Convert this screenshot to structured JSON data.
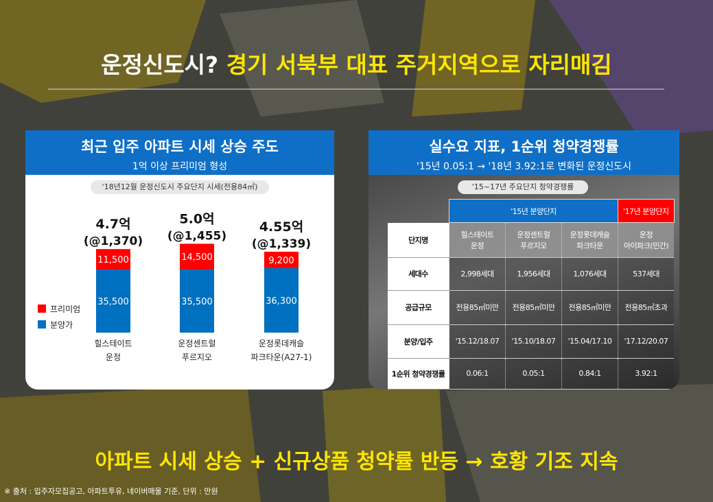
{
  "title": {
    "lead": "운정신도시?",
    "rest": "경기 서북부 대표 주거지역으로 자리매김"
  },
  "left_panel": {
    "title": "최근 입주 아파트 시세 상승 주도",
    "subtitle": "1억 이상 프리미엄 형성",
    "caption": "'18년12월 운정신도시 주요단지 시세(전용84㎡)"
  },
  "chart_data": {
    "type": "stacked_bar",
    "categories": [
      "힐스테이트\n운정",
      "운정센트럴\n푸르지오",
      "운정롯데캐슬\n파크타운(A27-1)"
    ],
    "series": [
      {
        "name": "분양가",
        "color": "#0070c0",
        "values": [
          35500,
          35500,
          36300
        ],
        "value_labels": [
          "35,500",
          "35,500",
          "36,300"
        ]
      },
      {
        "name": "프리미엄",
        "color": "#ff0000",
        "values": [
          11500,
          14500,
          9200
        ],
        "value_labels": [
          "11,500",
          "14,500",
          "9,200"
        ]
      }
    ],
    "annotations": [
      [
        "4.7억",
        "(@1,370)"
      ],
      [
        "5.0억",
        "(@1,455)"
      ],
      [
        "4.55억",
        "(@1,339)"
      ]
    ]
  },
  "right_panel": {
    "title": "실수요 지표, 1순위 청약경쟁률",
    "subtitle": "'15년 0.05:1 → '18년 3.92:1로 변화된 운정신도시",
    "caption": "'15~17년 주요단지 청약경쟁률"
  },
  "table": {
    "group_headers": [
      "'15년 분양단지",
      "'17년 분양단지"
    ],
    "rows": [
      [
        "단지명",
        "힐스테이트\n운정",
        "운정센트럴\n푸르지오",
        "운정롯데캐슬\n파크타운",
        "운정\n아이파크(민간)"
      ],
      [
        "세대수",
        "2,998세대",
        "1,956세대",
        "1,076세대",
        "537세대"
      ],
      [
        "공급규모",
        "전용85㎡미만",
        "전용85㎡미만",
        "전용85㎡미만",
        "전용85㎡초과"
      ],
      [
        "분양/입주",
        "'15.12/18.07",
        "'15.10/18.07",
        "'15.04/17.10",
        "'17.12/20.07"
      ],
      [
        "1순위 청약경쟁률",
        "0.06:1",
        "0.05:1",
        "0.84:1",
        "3.92:1"
      ]
    ]
  },
  "conclusion": "아파트 시세 상승 + 신규상품 청약률 반등 → 호황 기조 지속",
  "footnote": "※ 출처 : 입주자모집공고, 아파트투유, 네이버매물 기준, 단위 : 만원"
}
